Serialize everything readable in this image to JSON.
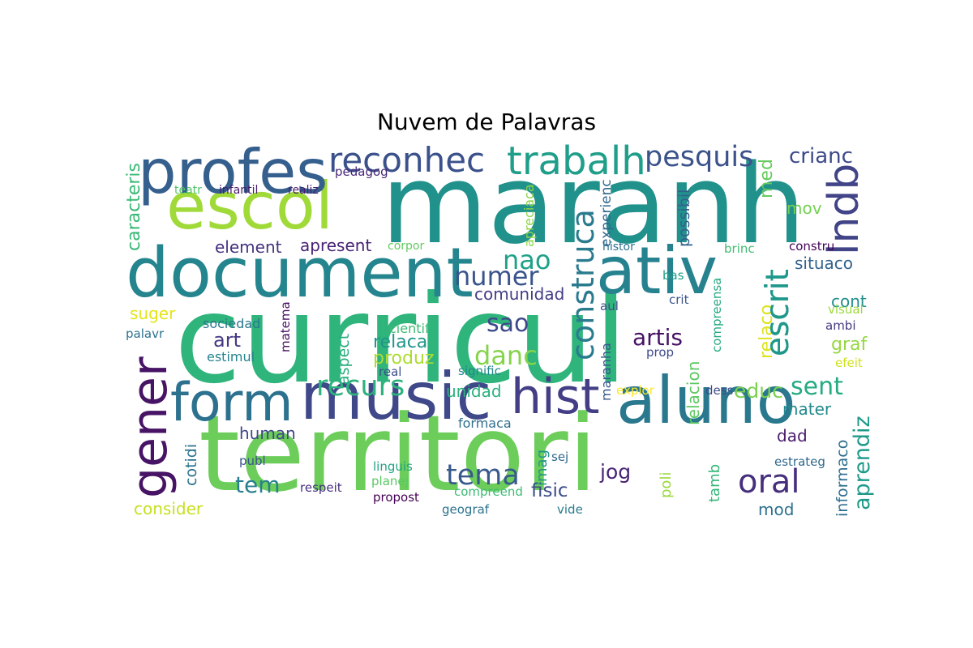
{
  "title": "Nuvem de Palavras",
  "words": [
    {
      "text": "curricul",
      "color": "#2fb47c"
    },
    {
      "text": "maranh",
      "color": "#21918c"
    },
    {
      "text": "territori",
      "color": "#6ccd5a"
    },
    {
      "text": "music",
      "color": "#3f4889"
    },
    {
      "text": "document",
      "color": "#25858e"
    },
    {
      "text": "escol",
      "color": "#a0da39"
    },
    {
      "text": "profes",
      "color": "#355f8d"
    },
    {
      "text": "aluno",
      "color": "#2a788e"
    },
    {
      "text": "ativ",
      "color": "#26828e"
    },
    {
      "text": "form",
      "color": "#2c718e"
    },
    {
      "text": "gener",
      "color": "#471365"
    },
    {
      "text": "hist",
      "color": "#433e85"
    },
    {
      "text": "trabalh",
      "color": "#1f9e89"
    },
    {
      "text": "reconhec",
      "color": "#3b518b"
    },
    {
      "text": "pesquis",
      "color": "#3b528b"
    },
    {
      "text": "lndb",
      "color": "#414487"
    },
    {
      "text": "crianc",
      "color": "#3e4a89"
    },
    {
      "text": "construca",
      "color": "#2a7b8e"
    },
    {
      "text": "escrit",
      "color": "#1f988b"
    },
    {
      "text": "numer",
      "color": "#3a548c"
    },
    {
      "text": "nao",
      "color": "#1fa187"
    },
    {
      "text": "recurs",
      "color": "#2db27d"
    },
    {
      "text": "sao",
      "color": "#3e4989"
    },
    {
      "text": "danc",
      "color": "#84d44b"
    },
    {
      "text": "artis",
      "color": "#471164"
    },
    {
      "text": "sent",
      "color": "#25ab82"
    },
    {
      "text": "oral",
      "color": "#46307e"
    },
    {
      "text": "tema",
      "color": "#38598c"
    },
    {
      "text": "jog",
      "color": "#482475"
    },
    {
      "text": "educ",
      "color": "#7ad151"
    },
    {
      "text": "element",
      "color": "#46327e"
    },
    {
      "text": "apresent",
      "color": "#482173"
    },
    {
      "text": "art",
      "color": "#443983"
    },
    {
      "text": "caracteris",
      "color": "#3aba76"
    },
    {
      "text": "aprendiz",
      "color": "#1f9a8a"
    },
    {
      "text": "informaco",
      "color": "#2e6e8e"
    },
    {
      "text": "tem",
      "color": "#27808e"
    },
    {
      "text": "cotidi",
      "color": "#2c738e"
    },
    {
      "text": "possibil",
      "color": "#34618d"
    },
    {
      "text": "relacion",
      "color": "#5ec962"
    },
    {
      "text": "mov",
      "color": "#75d054"
    },
    {
      "text": "situaco",
      "color": "#33638d"
    },
    {
      "text": "comunidad",
      "color": "#433e85"
    },
    {
      "text": "produz",
      "color": "#addc30"
    },
    {
      "text": "relaca",
      "color": "#1f968b"
    },
    {
      "text": "unidad",
      "color": "#2cb17e"
    },
    {
      "text": "graf",
      "color": "#95d840"
    },
    {
      "text": "cont",
      "color": "#218f8d"
    },
    {
      "text": "fisic",
      "color": "#3d4d8a"
    },
    {
      "text": "mod",
      "color": "#2c728e"
    },
    {
      "text": "dad",
      "color": "#481b6d"
    },
    {
      "text": "mater",
      "color": "#238a8d"
    },
    {
      "text": "human",
      "color": "#3f4788"
    },
    {
      "text": "consider",
      "color": "#c8e020"
    },
    {
      "text": "suger",
      "color": "#e5e419"
    },
    {
      "text": "relaco",
      "color": "#dde318"
    },
    {
      "text": "escrit",
      "color": "#1f988b"
    },
    {
      "text": "infantil",
      "color": "#48186a"
    },
    {
      "text": "realiz",
      "color": "#481f70"
    },
    {
      "text": "teatr",
      "color": "#52c569"
    },
    {
      "text": "pedagog",
      "color": "#482878"
    },
    {
      "text": "corpor",
      "color": "#63cb5f"
    },
    {
      "text": "apreciaca",
      "color": "#8bd646"
    },
    {
      "text": "experienc",
      "color": "#31688e"
    },
    {
      "text": "histor",
      "color": "#2d708e"
    },
    {
      "text": "brinc",
      "color": "#40bd72"
    },
    {
      "text": "constru",
      "color": "#450559"
    },
    {
      "text": "med",
      "color": "#65cb5e"
    },
    {
      "text": "bas",
      "color": "#1f9e89"
    },
    {
      "text": "crit",
      "color": "#39568c"
    },
    {
      "text": "aul",
      "color": "#3e4c8a"
    },
    {
      "text": "compreensa",
      "color": "#25ab82"
    },
    {
      "text": "visual",
      "color": "#9dd93b"
    },
    {
      "text": "ambi",
      "color": "#453882"
    },
    {
      "text": "efeit",
      "color": "#d0e11c"
    },
    {
      "text": "prop",
      "color": "#3e4a89"
    },
    {
      "text": "sociedad",
      "color": "#2a778e"
    },
    {
      "text": "palavr",
      "color": "#2c718e"
    },
    {
      "text": "estimul",
      "color": "#25848e"
    },
    {
      "text": "matema",
      "color": "#471063"
    },
    {
      "text": "aspect",
      "color": "#29af7f"
    },
    {
      "text": "cientif",
      "color": "#3dbc74"
    },
    {
      "text": "real",
      "color": "#3b518b"
    },
    {
      "text": "signific",
      "color": "#23888e"
    },
    {
      "text": "maranha",
      "color": "#38588c"
    },
    {
      "text": "formaca",
      "color": "#2e6f8e"
    },
    {
      "text": "sej",
      "color": "#31688e"
    },
    {
      "text": "imag",
      "color": "#1f958b"
    },
    {
      "text": "explor",
      "color": "#fde725"
    },
    {
      "text": "dess",
      "color": "#3e4c8a"
    },
    {
      "text": "linguis",
      "color": "#20a386"
    },
    {
      "text": "planej",
      "color": "#5ac864"
    },
    {
      "text": "publ",
      "color": "#3b528b"
    },
    {
      "text": "respeit",
      "color": "#46307e"
    },
    {
      "text": "propost",
      "color": "#440154"
    },
    {
      "text": "compreend",
      "color": "#3dbc74"
    },
    {
      "text": "geograf",
      "color": "#2c738e"
    },
    {
      "text": "vide",
      "color": "#287c8e"
    },
    {
      "text": "poli",
      "color": "#9bd93c"
    },
    {
      "text": "tamb",
      "color": "#35b779"
    },
    {
      "text": "estrateg",
      "color": "#31688e"
    }
  ]
}
